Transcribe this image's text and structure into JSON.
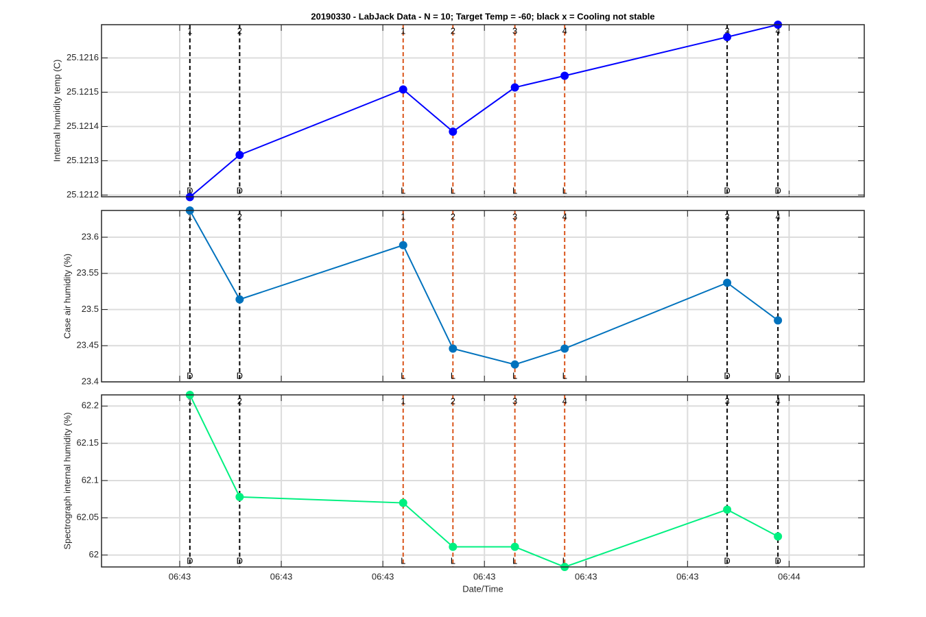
{
  "figure": {
    "title": "20190330 - LabJack Data - N = 10; Target Temp = -60; black x = Cooling not stable",
    "xlabel": "Date/Time"
  },
  "xaxis": {
    "xlim": [
      -7.7,
      67.4
    ],
    "xticks": [
      {
        "value": 0,
        "label": "06:43"
      },
      {
        "value": 10,
        "label": "06:43"
      },
      {
        "value": 20,
        "label": "06:43"
      },
      {
        "value": 30,
        "label": "06:43"
      },
      {
        "value": 40,
        "label": "06:43"
      },
      {
        "value": 50,
        "label": "06:43"
      },
      {
        "value": 60,
        "label": "06:44"
      }
    ],
    "grid": true
  },
  "events": [
    {
      "x": 1.0,
      "top": "1",
      "bottom": "D",
      "color": "#000000"
    },
    {
      "x": 5.9,
      "top": "2",
      "bottom": "D",
      "color": "#000000"
    },
    {
      "x": 22.0,
      "top": "1",
      "bottom": "L",
      "color": "#d95319"
    },
    {
      "x": 26.9,
      "top": "2",
      "bottom": "L",
      "color": "#d95319"
    },
    {
      "x": 33.0,
      "top": "3",
      "bottom": "L",
      "color": "#d95319"
    },
    {
      "x": 37.9,
      "top": "4",
      "bottom": "L",
      "color": "#d95319"
    },
    {
      "x": 53.9,
      "top": "3",
      "bottom": "D",
      "color": "#000000"
    },
    {
      "x": 58.9,
      "top": "4",
      "bottom": "D",
      "color": "#000000"
    }
  ],
  "chart_data": [
    {
      "type": "line",
      "ylabel": "Internal humidity temp (C)",
      "ylim": [
        25.121195,
        25.121697
      ],
      "yticks": [
        25.1212,
        25.1213,
        25.1214,
        25.1215,
        25.1216
      ],
      "grid": true,
      "x": [
        1.0,
        5.9,
        22.0,
        26.9,
        33.0,
        37.9,
        53.9,
        58.9
      ],
      "series": [
        {
          "color": "#0000ff",
          "values": [
            25.121194,
            25.121317,
            25.121508,
            25.121385,
            25.121514,
            25.121548,
            25.121661,
            25.121697
          ]
        }
      ]
    },
    {
      "type": "line",
      "ylabel": "Case air humidity (%)",
      "ylim": [
        23.4,
        23.637
      ],
      "yticks": [
        23.4,
        23.45,
        23.5,
        23.55,
        23.6
      ],
      "grid": true,
      "x": [
        1.0,
        5.9,
        22.0,
        26.9,
        33.0,
        37.9,
        53.9,
        58.9
      ],
      "series": [
        {
          "color": "#0072bd",
          "values": [
            23.637,
            23.514,
            23.589,
            23.446,
            23.424,
            23.446,
            23.537,
            23.485
          ]
        }
      ]
    },
    {
      "type": "line",
      "ylabel": "Spectrograph internal humidity (%)",
      "ylim": [
        61.984,
        62.215
      ],
      "yticks": [
        62,
        62.05,
        62.1,
        62.15,
        62.2
      ],
      "grid": true,
      "x": [
        1.0,
        5.9,
        22.0,
        26.9,
        33.0,
        37.9,
        53.9,
        58.9
      ],
      "series": [
        {
          "color": "#00f080",
          "values": [
            62.215,
            62.078,
            62.07,
            62.011,
            62.011,
            61.984,
            62.061,
            62.025
          ]
        }
      ]
    }
  ]
}
